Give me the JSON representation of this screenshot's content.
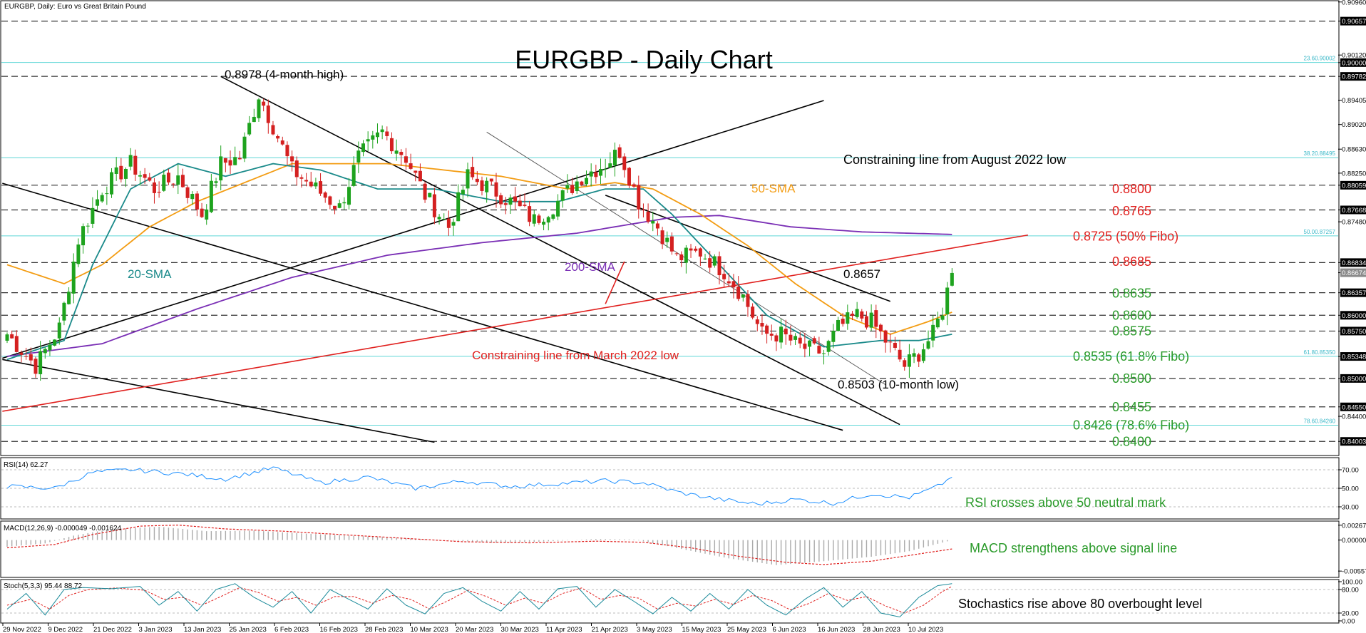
{
  "header": {
    "instrument": "EURGBP, Daily:  Euro vs Great Britain Pound",
    "title": "EURGBP - Daily Chart",
    "rsi_label": "RSI(14) 62.27",
    "macd_label": "MACD(12,26,9) -0.000049 -0.001624",
    "stoch_label": "Stoch(5,3,3) 95.44 88.72"
  },
  "chart_data": {
    "type": "candlestick",
    "ylim": [
      0.8378,
      0.9098
    ],
    "x_ticks": [
      "29 Nov 2022",
      "9 Dec 2022",
      "21 Dec 2022",
      "3 Jan 2023",
      "13 Jan 2023",
      "25 Jan 2023",
      "6 Feb 2023",
      "16 Feb 2023",
      "28 Feb 2023",
      "10 Mar 2023",
      "20 Mar 2023",
      "30 Mar 2023",
      "11 Apr 2023",
      "21 Apr 2023",
      "3 May 2023",
      "15 May 2023",
      "25 May 2023",
      "6 Jun 2023",
      "16 Jun 2023",
      "28 Jun 2023",
      "10 Jul 2023"
    ],
    "y_ticks": [
      {
        "label": "0.90960",
        "value": 0.9096
      },
      {
        "label": "0.90657",
        "value": 0.90657,
        "style": "box"
      },
      {
        "label": "0.90120",
        "value": 0.9012
      },
      {
        "label": "0.90000",
        "value": 0.9,
        "style": "box"
      },
      {
        "label": "0.89782",
        "value": 0.89782,
        "style": "box"
      },
      {
        "label": "0.89405",
        "value": 0.89405
      },
      {
        "label": "0.89020",
        "value": 0.8902
      },
      {
        "label": "0.88630",
        "value": 0.8863
      },
      {
        "label": "0.88250",
        "value": 0.8825
      },
      {
        "label": "0.88059",
        "value": 0.88059,
        "style": "box"
      },
      {
        "label": "0.87668",
        "value": 0.87668,
        "style": "box"
      },
      {
        "label": "0.87480",
        "value": 0.8748
      },
      {
        "label": "0.86834",
        "value": 0.86834,
        "style": "box"
      },
      {
        "label": "0.86674",
        "value": 0.86674,
        "style": "current"
      },
      {
        "label": "0.86357",
        "value": 0.86357,
        "style": "box"
      },
      {
        "label": "0.86000",
        "value": 0.86,
        "style": "box"
      },
      {
        "label": "0.85750",
        "value": 0.8575,
        "style": "box"
      },
      {
        "label": "0.85348",
        "value": 0.85348,
        "style": "box"
      },
      {
        "label": "0.85000",
        "value": 0.85,
        "style": "box"
      },
      {
        "label": "0.84550",
        "value": 0.8455,
        "style": "box"
      },
      {
        "label": "0.84400",
        "value": 0.844
      },
      {
        "label": "0.84003",
        "value": 0.84003,
        "style": "box"
      }
    ],
    "fibo": [
      {
        "label": "23.60.90002",
        "value": 0.90002
      },
      {
        "label": "38.20.88495",
        "value": 0.88495
      },
      {
        "label": "50.00.87257",
        "value": 0.87257
      },
      {
        "label": "61.80.85350",
        "value": 0.8535
      },
      {
        "label": "78.60.84260",
        "value": 0.8426
      }
    ],
    "dashed_levels": [
      0.90657,
      0.89782,
      0.88059,
      0.87668,
      0.86834,
      0.86357,
      0.86,
      0.8575,
      0.85,
      0.8455,
      0.84003
    ],
    "level_labels": [
      {
        "text": "0.8800",
        "value": 0.88,
        "color": "#e0201e"
      },
      {
        "text": "0.8765",
        "value": 0.8765,
        "color": "#e0201e"
      },
      {
        "text": "0.8725 (50% Fibo)",
        "value": 0.8725,
        "color": "#e0201e"
      },
      {
        "text": "0.8685",
        "value": 0.8685,
        "color": "#e0201e"
      },
      {
        "text": "0.8635",
        "value": 0.8635,
        "color": "#2a9a2a"
      },
      {
        "text": "0.8600",
        "value": 0.86,
        "color": "#2a9a2a"
      },
      {
        "text": "0.8575",
        "value": 0.8575,
        "color": "#2a9a2a"
      },
      {
        "text": "0.8535 (61.8% Fibo)",
        "value": 0.8535,
        "color": "#2a9a2a"
      },
      {
        "text": "0.8500",
        "value": 0.85,
        "color": "#2a9a2a"
      },
      {
        "text": "0.8455",
        "value": 0.8455,
        "color": "#2a9a2a"
      },
      {
        "text": "0.8426 (78.6% Fibo)",
        "value": 0.8426,
        "color": "#2a9a2a"
      },
      {
        "text": "0.8400",
        "value": 0.84,
        "color": "#2a9a2a"
      }
    ],
    "annotations": {
      "high": "0.8978 (4-month high)",
      "peak_0_8657": "0.8657",
      "low": "0.8503 (10-month low)",
      "aug_line": "Constraining line from August 2022 low",
      "mar_line": "Constraining line from March 2022 low",
      "sma20": "20-SMA",
      "sma50": "50-SMA",
      "sma200": "200-SMA",
      "rsi_note": "RSI crosses above 50 neutral mark",
      "macd_note": "MACD strengthens above signal line",
      "stoch_note": "Stochastics rise above 80 overbought level"
    },
    "price_anchors": [
      [
        0,
        0.857
      ],
      [
        6,
        0.852
      ],
      [
        11,
        0.858
      ],
      [
        15,
        0.872
      ],
      [
        20,
        0.88
      ],
      [
        26,
        0.884
      ],
      [
        31,
        0.88
      ],
      [
        36,
        0.882
      ],
      [
        41,
        0.876
      ],
      [
        45,
        0.884
      ],
      [
        49,
        0.885
      ],
      [
        53,
        0.895
      ],
      [
        56,
        0.89
      ],
      [
        60,
        0.883
      ],
      [
        65,
        0.88
      ],
      [
        70,
        0.877
      ],
      [
        74,
        0.885
      ],
      [
        79,
        0.889
      ],
      [
        84,
        0.885
      ],
      [
        88,
        0.879
      ],
      [
        93,
        0.874
      ],
      [
        97,
        0.882
      ],
      [
        102,
        0.88
      ],
      [
        106,
        0.878
      ],
      [
        111,
        0.875
      ],
      [
        116,
        0.878
      ],
      [
        121,
        0.882
      ],
      [
        126,
        0.884
      ],
      [
        129,
        0.886
      ],
      [
        133,
        0.878
      ],
      [
        137,
        0.874
      ],
      [
        141,
        0.869
      ],
      [
        146,
        0.87
      ],
      [
        151,
        0.867
      ],
      [
        155,
        0.863
      ],
      [
        159,
        0.857
      ],
      [
        163,
        0.857
      ],
      [
        167,
        0.855
      ],
      [
        172,
        0.854
      ],
      [
        175,
        0.858
      ],
      [
        179,
        0.86
      ],
      [
        182,
        0.859
      ],
      [
        185,
        0.856
      ],
      [
        189,
        0.852
      ],
      [
        192,
        0.854
      ],
      [
        195,
        0.857
      ],
      [
        197,
        0.861
      ],
      [
        199,
        0.8667
      ]
    ],
    "sma20_anchors": [
      [
        0,
        0.853
      ],
      [
        12,
        0.856
      ],
      [
        18,
        0.868
      ],
      [
        26,
        0.88
      ],
      [
        36,
        0.884
      ],
      [
        46,
        0.882
      ],
      [
        56,
        0.884
      ],
      [
        66,
        0.883
      ],
      [
        78,
        0.88
      ],
      [
        90,
        0.88
      ],
      [
        104,
        0.878
      ],
      [
        116,
        0.878
      ],
      [
        126,
        0.88
      ],
      [
        134,
        0.88
      ],
      [
        140,
        0.876
      ],
      [
        150,
        0.868
      ],
      [
        160,
        0.86
      ],
      [
        172,
        0.855
      ],
      [
        184,
        0.856
      ],
      [
        192,
        0.856
      ],
      [
        199,
        0.857
      ]
    ],
    "sma50_anchors": [
      [
        0,
        0.868
      ],
      [
        12,
        0.865
      ],
      [
        20,
        0.868
      ],
      [
        30,
        0.874
      ],
      [
        40,
        0.878
      ],
      [
        50,
        0.881
      ],
      [
        60,
        0.884
      ],
      [
        70,
        0.884
      ],
      [
        80,
        0.884
      ],
      [
        92,
        0.883
      ],
      [
        104,
        0.882
      ],
      [
        118,
        0.88
      ],
      [
        128,
        0.881
      ],
      [
        136,
        0.88
      ],
      [
        146,
        0.876
      ],
      [
        156,
        0.871
      ],
      [
        166,
        0.865
      ],
      [
        176,
        0.86
      ],
      [
        186,
        0.857
      ],
      [
        194,
        0.859
      ],
      [
        199,
        0.8605
      ]
    ],
    "sma200_anchors": [
      [
        0,
        0.8535
      ],
      [
        20,
        0.8555
      ],
      [
        40,
        0.861
      ],
      [
        60,
        0.866
      ],
      [
        80,
        0.8695
      ],
      [
        100,
        0.8715
      ],
      [
        120,
        0.873
      ],
      [
        140,
        0.8755
      ],
      [
        150,
        0.8758
      ],
      [
        165,
        0.874
      ],
      [
        180,
        0.8732
      ],
      [
        199,
        0.8728
      ]
    ],
    "rsi": {
      "ylim": [
        20,
        80
      ],
      "ticks": [
        {
          "label": "70.00",
          "value": 70
        },
        {
          "label": "50.00",
          "value": 50
        },
        {
          "label": "30.00",
          "value": 30
        }
      ],
      "anchors": [
        [
          0,
          52
        ],
        [
          10,
          50
        ],
        [
          18,
          67
        ],
        [
          26,
          70
        ],
        [
          36,
          66
        ],
        [
          46,
          60
        ],
        [
          56,
          72
        ],
        [
          66,
          56
        ],
        [
          76,
          62
        ],
        [
          86,
          50
        ],
        [
          96,
          58
        ],
        [
          106,
          52
        ],
        [
          116,
          55
        ],
        [
          126,
          58
        ],
        [
          134,
          56
        ],
        [
          142,
          45
        ],
        [
          150,
          38
        ],
        [
          158,
          33
        ],
        [
          166,
          38
        ],
        [
          174,
          34
        ],
        [
          182,
          44
        ],
        [
          190,
          40
        ],
        [
          196,
          52
        ],
        [
          199,
          62
        ]
      ]
    },
    "macd": {
      "ylim": [
        -0.0062,
        0.0029
      ],
      "ticks": [
        {
          "label": "0.002671",
          "value": 0.002671
        },
        {
          "label": "0.000000",
          "value": 0
        },
        {
          "label": "-0.005577",
          "value": -0.005577
        }
      ],
      "hist_anchors": [
        [
          0,
          -0.0012
        ],
        [
          8,
          -0.0006
        ],
        [
          14,
          0.0008
        ],
        [
          22,
          0.002
        ],
        [
          32,
          0.0024
        ],
        [
          42,
          0.0016
        ],
        [
          52,
          0.0017
        ],
        [
          62,
          0.0012
        ],
        [
          72,
          0.0008
        ],
        [
          82,
          0.0004
        ],
        [
          92,
          0.0
        ],
        [
          102,
          -0.0005
        ],
        [
          112,
          -0.0003
        ],
        [
          124,
          0.0002
        ],
        [
          132,
          0.0001
        ],
        [
          142,
          -0.0016
        ],
        [
          152,
          -0.0033
        ],
        [
          162,
          -0.0045
        ],
        [
          172,
          -0.0038
        ],
        [
          182,
          -0.003
        ],
        [
          190,
          -0.002
        ],
        [
          199,
          0.0
        ]
      ],
      "signal_anchors": [
        [
          0,
          -0.0014
        ],
        [
          10,
          -0.0008
        ],
        [
          18,
          0.001
        ],
        [
          28,
          0.0025
        ],
        [
          36,
          0.0027
        ],
        [
          46,
          0.002
        ],
        [
          58,
          0.0016
        ],
        [
          70,
          0.001
        ],
        [
          84,
          0.0003
        ],
        [
          96,
          -0.0003
        ],
        [
          110,
          -0.0005
        ],
        [
          124,
          -0.0002
        ],
        [
          134,
          -0.0004
        ],
        [
          144,
          -0.0014
        ],
        [
          154,
          -0.0029
        ],
        [
          164,
          -0.004
        ],
        [
          172,
          -0.0044
        ],
        [
          182,
          -0.0038
        ],
        [
          192,
          -0.0025
        ],
        [
          199,
          -0.0016
        ]
      ]
    },
    "stoch": {
      "ylim": [
        0,
        100
      ],
      "ticks": [
        {
          "label": "100.00",
          "value": 100
        },
        {
          "label": "80.00",
          "value": 80
        },
        {
          "label": "20.00",
          "value": 20
        },
        {
          "label": "0.00",
          "value": 0
        }
      ],
      "k_anchors": [
        [
          0,
          30
        ],
        [
          4,
          70
        ],
        [
          8,
          15
        ],
        [
          12,
          80
        ],
        [
          16,
          85
        ],
        [
          22,
          82
        ],
        [
          28,
          88
        ],
        [
          32,
          40
        ],
        [
          36,
          75
        ],
        [
          40,
          25
        ],
        [
          44,
          80
        ],
        [
          48,
          95
        ],
        [
          52,
          60
        ],
        [
          56,
          35
        ],
        [
          60,
          75
        ],
        [
          64,
          20
        ],
        [
          68,
          80
        ],
        [
          72,
          55
        ],
        [
          76,
          30
        ],
        [
          80,
          82
        ],
        [
          84,
          40
        ],
        [
          88,
          18
        ],
        [
          92,
          70
        ],
        [
          96,
          85
        ],
        [
          100,
          50
        ],
        [
          104,
          25
        ],
        [
          108,
          75
        ],
        [
          112,
          30
        ],
        [
          116,
          82
        ],
        [
          120,
          88
        ],
        [
          124,
          35
        ],
        [
          128,
          80
        ],
        [
          132,
          50
        ],
        [
          136,
          18
        ],
        [
          140,
          60
        ],
        [
          144,
          25
        ],
        [
          148,
          70
        ],
        [
          152,
          30
        ],
        [
          156,
          80
        ],
        [
          160,
          40
        ],
        [
          164,
          15
        ],
        [
          168,
          55
        ],
        [
          172,
          85
        ],
        [
          176,
          35
        ],
        [
          180,
          75
        ],
        [
          184,
          20
        ],
        [
          188,
          10
        ],
        [
          192,
          60
        ],
        [
          196,
          90
        ],
        [
          199,
          95
        ]
      ],
      "d_anchors": [
        [
          0,
          40
        ],
        [
          5,
          55
        ],
        [
          9,
          30
        ],
        [
          13,
          65
        ],
        [
          17,
          80
        ],
        [
          23,
          84
        ],
        [
          29,
          78
        ],
        [
          33,
          55
        ],
        [
          37,
          60
        ],
        [
          41,
          40
        ],
        [
          45,
          62
        ],
        [
          49,
          85
        ],
        [
          53,
          72
        ],
        [
          57,
          50
        ],
        [
          61,
          60
        ],
        [
          65,
          40
        ],
        [
          69,
          62
        ],
        [
          73,
          62
        ],
        [
          77,
          45
        ],
        [
          81,
          65
        ],
        [
          85,
          55
        ],
        [
          89,
          30
        ],
        [
          93,
          52
        ],
        [
          97,
          78
        ],
        [
          101,
          62
        ],
        [
          105,
          40
        ],
        [
          109,
          58
        ],
        [
          113,
          45
        ],
        [
          117,
          70
        ],
        [
          121,
          84
        ],
        [
          125,
          55
        ],
        [
          129,
          65
        ],
        [
          133,
          58
        ],
        [
          137,
          30
        ],
        [
          141,
          45
        ],
        [
          145,
          38
        ],
        [
          149,
          55
        ],
        [
          153,
          42
        ],
        [
          157,
          65
        ],
        [
          161,
          52
        ],
        [
          165,
          28
        ],
        [
          169,
          45
        ],
        [
          173,
          70
        ],
        [
          177,
          52
        ],
        [
          181,
          62
        ],
        [
          185,
          38
        ],
        [
          189,
          20
        ],
        [
          193,
          40
        ],
        [
          197,
          75
        ],
        [
          199,
          88
        ]
      ]
    }
  }
}
